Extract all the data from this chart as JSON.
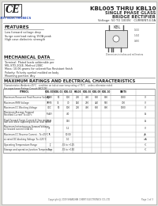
{
  "bg_color": "#e8e8e4",
  "page_bg": "#ffffff",
  "title_series": "KBL005 THRU KBL10",
  "title_line2": "SINGLE PHASE GLASS",
  "title_line3": "BRIDGE RECTIFIER",
  "title_line4": "Voltage: 50 TO 1000V   CURRENT:4.0A",
  "part_label": "KBL",
  "ce_mark": "CE",
  "company": "CHERYI ELECTRONICS",
  "features_title": "FEATURES",
  "features": [
    "Low forward voltage drop",
    "Surge overload rating 150A peak",
    "High case dielectric strength"
  ],
  "mech_title": "MECHANICAL DATA",
  "mech_data": [
    "Terminal: Plated leads solderable per",
    "MIL-STD-202E, Method 208C",
    "Mass: 10.06 grams for solvent/flux Resistant finish",
    "Polarity: Polarity symbol molded on body",
    "Mounting position: Any"
  ],
  "table_title": "MAXIMUM RATINGS AND ELECTRICAL CHARACTERISTICS",
  "table_note1": "Characteristics (Ambient=25°C   condition on tab at case temp rating of 75°C    unless otherwise noted",
  "table_note2": "For capacitance Ratings Consult FACTORY",
  "col_headers": [
    "SYMBOL",
    "KBL 005",
    "KBL 01",
    "KBL 02",
    "KBL04",
    "KBL 06",
    "KBL 08",
    "KBL 10",
    "UNITS"
  ],
  "rows": [
    {
      "param": "Maximum Recurrent Peak Reverse Voltage",
      "sym": "VRRM",
      "vals": [
        "50",
        "100",
        "200",
        "400",
        "600",
        "800",
        "1000"
      ],
      "unit": "V"
    },
    {
      "param": "Maximum RMS Voltage",
      "sym": "VRMS",
      "vals": [
        "35",
        "70",
        "140",
        "280",
        "420",
        "560",
        "700"
      ],
      "unit": "V"
    },
    {
      "param": "Maximum DC Blocking Voltage",
      "sym": "VDC",
      "vals": [
        "50",
        "100",
        "200",
        "400",
        "600",
        "800",
        "1000"
      ],
      "unit": "V"
    },
    {
      "param": "Maximum Average Forward Rectified Current Tc=40°c",
      "sym": "IF(AV)",
      "vals": [
        "",
        "4.0",
        "",
        "",
        "",
        "",
        ""
      ],
      "unit": "A",
      "tall": true
    },
    {
      "param": "Peak Forward Surge Current 8.3ms single half sine wave superimposed on load rated",
      "sym": "IFSM",
      "vals": [
        "",
        "150",
        "",
        "",
        "",
        "",
        ""
      ],
      "unit": "A",
      "tall": true
    },
    {
      "param": "Maximum Instantaneous Forward Voltage at forward current 4.0A DC",
      "sym": "VF",
      "vals": [
        "",
        "1.1",
        "",
        "",
        "",
        "",
        ""
      ],
      "unit": "V",
      "tall": true
    },
    {
      "param": "Maximum DC Reverse Current - Tc=25°C",
      "sym": "IR",
      "vals": [
        "",
        "10.00",
        "",
        "",
        "",
        "",
        ""
      ],
      "unit": "μA"
    },
    {
      "param": "at rated DC blocking Voltage Tc=125°C",
      "sym": "",
      "vals": [
        "",
        "1.0",
        "",
        "",
        "",
        "",
        ""
      ],
      "unit": "mA"
    },
    {
      "param": "Operating Temperature Range",
      "sym": "TJ",
      "vals": [
        "",
        "-55 to +125",
        "",
        "",
        "",
        "",
        ""
      ],
      "unit": "°C"
    },
    {
      "param": "Storage and operation Junction Temperature",
      "sym": "Tstg",
      "vals": [
        "",
        "-55 to +150",
        "",
        "",
        "",
        "",
        ""
      ],
      "unit": "°C"
    }
  ],
  "footnote": "Copyright @ 2009 SHANGHAI CHERYI ELECTRONICS CO.,LTD",
  "page_num": "Page 1 of 3"
}
